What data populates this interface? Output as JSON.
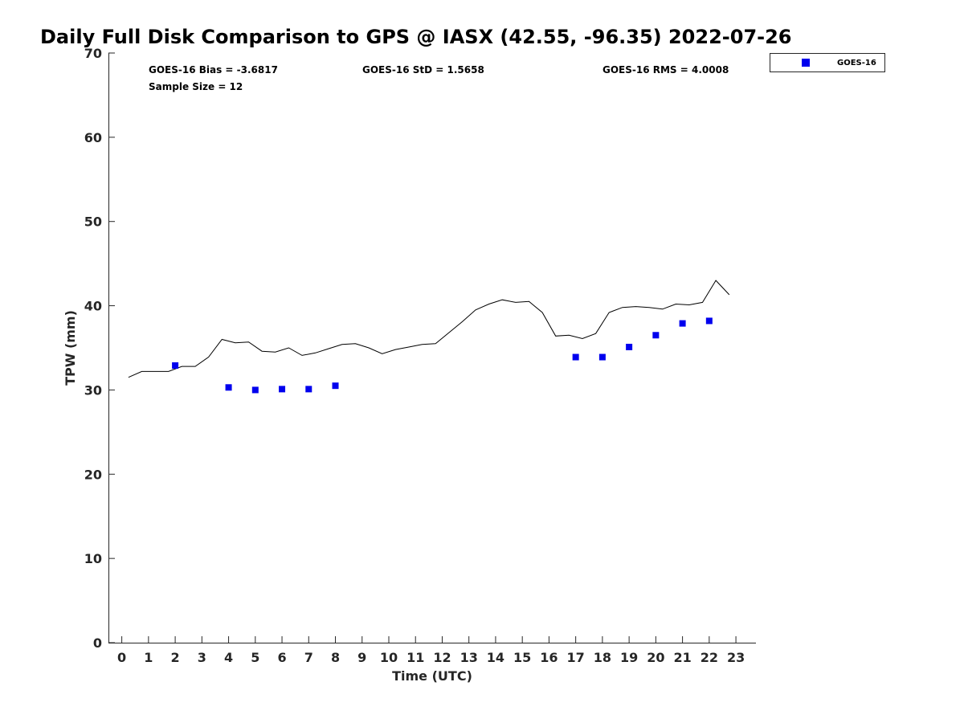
{
  "chart_data": {
    "type": "scatter",
    "title": "Daily Full Disk Comparison to GPS @ IASX (42.55, -96.35) 2022-07-26",
    "xlabel": "Time (UTC)",
    "ylabel": "TPW (mm)",
    "xlim": [
      -0.5,
      23.75
    ],
    "ylim": [
      0,
      70
    ],
    "x_ticks": [
      0,
      1,
      2,
      3,
      4,
      5,
      6,
      7,
      8,
      9,
      10,
      11,
      12,
      13,
      14,
      15,
      16,
      17,
      18,
      19,
      20,
      21,
      22,
      23
    ],
    "y_ticks": [
      0,
      10,
      20,
      30,
      40,
      50,
      60,
      70
    ],
    "grid": false,
    "legend_position": "top-right",
    "stats": {
      "bias": "GOES-16 Bias = -3.6817",
      "std": "GOES-16 StD = 1.5658",
      "rms": "GOES-16 RMS = 4.0008",
      "sample_size": "Sample Size = 12"
    },
    "series": [
      {
        "name": "GOES-16",
        "kind": "scatter",
        "marker": "square",
        "color": "#0000ee",
        "x": [
          2,
          4,
          5,
          6,
          7,
          8,
          17,
          18,
          19,
          20,
          21,
          22
        ],
        "y": [
          32.9,
          30.3,
          30.0,
          30.1,
          30.1,
          30.5,
          33.9,
          33.9,
          35.1,
          36.5,
          37.9,
          38.2
        ]
      },
      {
        "kind": "line",
        "color": "#000000",
        "x": [
          0.25,
          0.75,
          1.25,
          1.75,
          2.25,
          2.75,
          3.25,
          3.75,
          4.25,
          4.75,
          5.25,
          5.75,
          6.25,
          6.75,
          7.25,
          7.75,
          8.25,
          8.75,
          9.25,
          9.75,
          10.25,
          10.75,
          11.25,
          11.75,
          12.25,
          12.75,
          13.25,
          13.75,
          14.25,
          14.75,
          15.25,
          15.75,
          16.25,
          16.75,
          17.25,
          17.75,
          18.25,
          18.75,
          19.25,
          19.75,
          20.25,
          20.75,
          21.25,
          21.75,
          22.25,
          22.75
        ],
        "y": [
          31.5,
          32.2,
          32.2,
          32.2,
          32.8,
          32.8,
          33.9,
          36.0,
          35.6,
          35.7,
          34.6,
          34.5,
          35.0,
          34.1,
          34.4,
          34.9,
          35.4,
          35.5,
          35.0,
          34.3,
          34.8,
          35.1,
          35.4,
          35.5,
          36.8,
          38.1,
          39.5,
          40.2,
          40.7,
          40.4,
          40.5,
          39.2,
          36.4,
          36.5,
          36.1,
          36.7,
          39.2,
          39.8,
          39.9,
          39.8,
          39.6,
          40.2,
          40.1,
          40.4,
          43.0,
          41.3
        ]
      }
    ]
  }
}
